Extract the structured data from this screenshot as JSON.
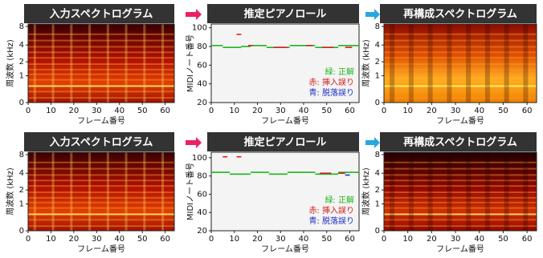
{
  "chart_data": [
    {
      "type": "spectrogram",
      "title": "入力スペクトログラム",
      "xlabel": "フレーム番号",
      "ylabel": "周波数 (kHz)",
      "xlim": [
        0,
        64
      ],
      "xticks": [
        0,
        10,
        20,
        30,
        40,
        50,
        60
      ],
      "ylim": [
        0,
        8
      ],
      "yticks": [
        0,
        1,
        2,
        4,
        8
      ],
      "yscale": "mel",
      "onsets": true
    },
    {
      "type": "pianoroll",
      "title": "推定ピアノロール",
      "xlabel": "フレーム番号",
      "ylabel": "MIDIノート番号",
      "xlim": [
        0,
        64
      ],
      "xticks": [
        0,
        10,
        20,
        30,
        40,
        50,
        60
      ],
      "ylim": [
        20,
        104
      ],
      "yticks": [
        20,
        40,
        60,
        80,
        100
      ],
      "series": [
        {
          "name": "緑: 正解",
          "color": "#1fb51f",
          "starts": [
            0,
            5,
            13,
            17,
            24,
            34,
            45,
            55
          ],
          "ends": [
            5,
            13,
            17,
            24,
            34,
            45,
            55,
            64
          ],
          "values": [
            81,
            79,
            80,
            81,
            79,
            81,
            79,
            81
          ]
        },
        {
          "name": "赤: 挿入誤り",
          "color": "#d42020",
          "starts": [
            11,
            16,
            27,
            41,
            48,
            58
          ],
          "ends": [
            13,
            18,
            33,
            44,
            53,
            61
          ],
          "values": [
            93,
            81,
            79,
            81,
            79,
            79
          ]
        },
        {
          "name": "青: 脱落誤り",
          "color": "#1f2fc8",
          "starts": [],
          "ends": [],
          "values": []
        }
      ]
    },
    {
      "type": "spectrogram",
      "title": "再構成スペクトログラム",
      "xlabel": "フレーム番号",
      "ylabel": "周波数 (kHz)",
      "xlim": [
        0,
        64
      ],
      "xticks": [
        0,
        10,
        20,
        30,
        40,
        50,
        60
      ],
      "ylim": [
        0,
        8
      ],
      "yticks": [
        0,
        1,
        2,
        4,
        8
      ],
      "yscale": "mel",
      "onsets": false
    },
    {
      "type": "spectrogram",
      "title": "入力スペクトログラム",
      "xlabel": "フレーム番号",
      "ylabel": "周波数 (kHz)",
      "xlim": [
        0,
        64
      ],
      "xticks": [
        0,
        10,
        20,
        30,
        40,
        50,
        60
      ],
      "ylim": [
        0,
        8
      ],
      "yticks": [
        0,
        1,
        2,
        4,
        8
      ],
      "yscale": "mel",
      "onsets": true
    },
    {
      "type": "pianoroll",
      "title": "推定ピアノロール",
      "xlabel": "フレーム番号",
      "ylabel": "MIDIノート番号",
      "xlim": [
        0,
        64
      ],
      "xticks": [
        0,
        10,
        20,
        30,
        40,
        50,
        60
      ],
      "ylim": [
        20,
        106
      ],
      "yticks": [
        20,
        40,
        60,
        80,
        100
      ],
      "series": [
        {
          "name": "緑: 正解",
          "color": "#1fb51f",
          "starts": [
            0,
            8,
            17,
            25,
            33,
            45,
            55
          ],
          "ends": [
            8,
            17,
            25,
            33,
            45,
            55,
            64
          ],
          "values": [
            84,
            82,
            84,
            82,
            84,
            82,
            84
          ]
        },
        {
          "name": "赤: 挿入誤り",
          "color": "#d42020",
          "starts": [
            5,
            11,
            47,
            55
          ],
          "ends": [
            7,
            13,
            52,
            58
          ],
          "values": [
            101,
            101,
            83,
            83
          ]
        },
        {
          "name": "青: 脱落誤り",
          "color": "#1f2fc8",
          "starts": [
            58
          ],
          "ends": [
            60
          ],
          "values": [
            81
          ]
        }
      ]
    },
    {
      "type": "spectrogram",
      "title": "再構成スペクトログラム",
      "xlabel": "フレーム番号",
      "ylabel": "周波数 (kHz)",
      "xlim": [
        0,
        64
      ],
      "xticks": [
        0,
        10,
        20,
        30,
        40,
        50,
        60
      ],
      "ylim": [
        0,
        8
      ],
      "yticks": [
        0,
        1,
        2,
        4,
        8
      ],
      "yscale": "mel",
      "onsets": false
    }
  ]
}
